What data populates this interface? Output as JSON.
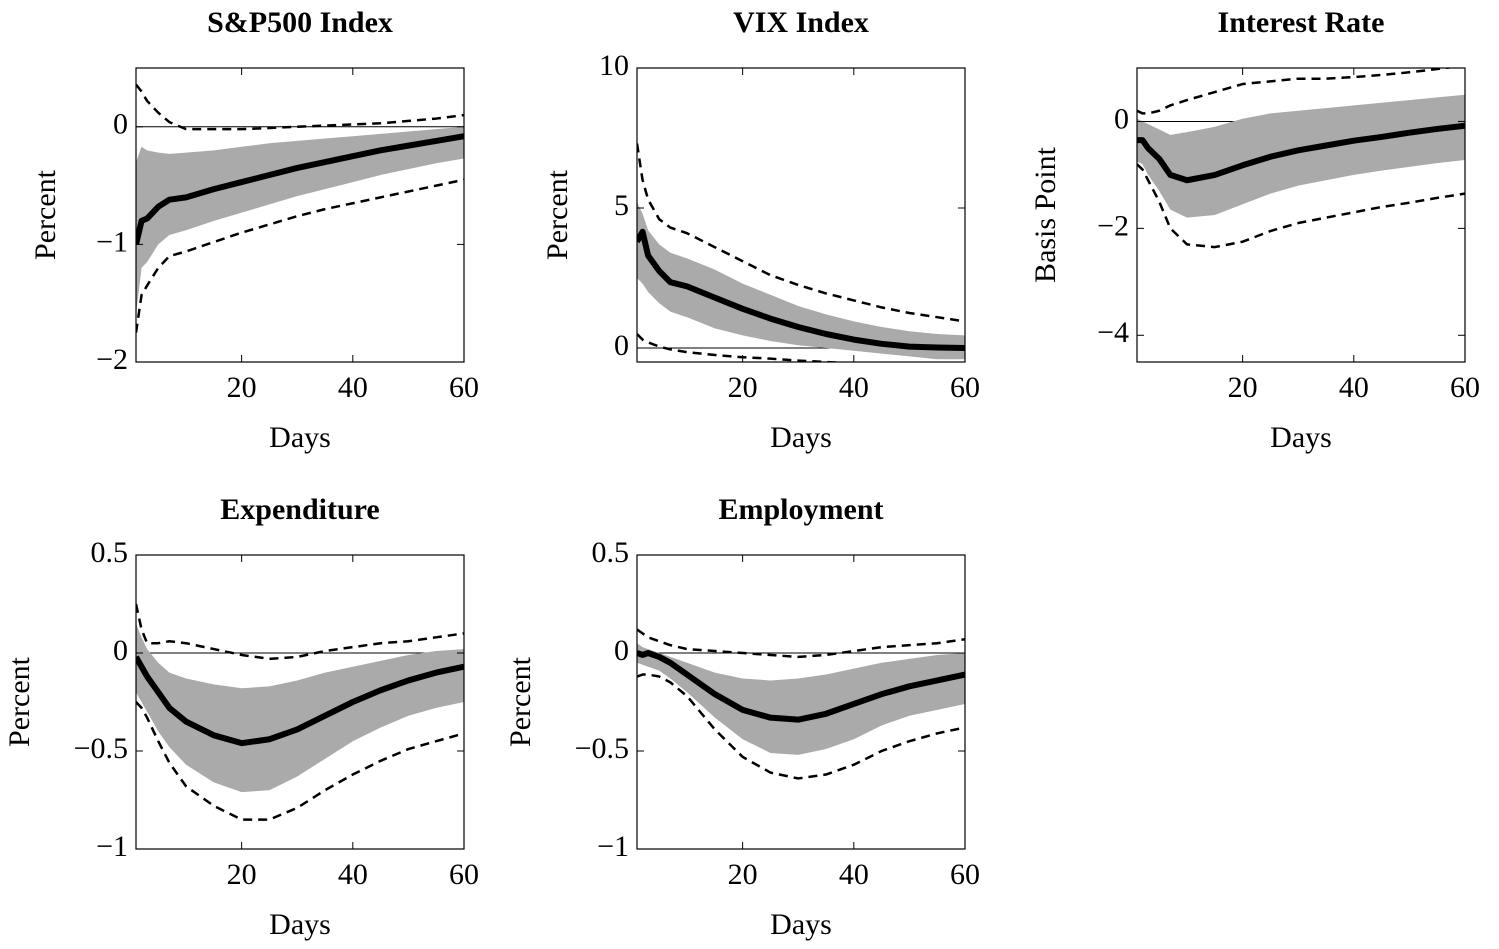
{
  "chart_data": [
    {
      "type": "line",
      "title": "S&P500 Index",
      "xlabel": "Days",
      "ylabel": "Percent",
      "x": [
        1,
        2,
        3,
        5,
        7,
        10,
        15,
        20,
        25,
        30,
        35,
        40,
        45,
        50,
        55,
        60
      ],
      "xlim": [
        1,
        60
      ],
      "xticks": [
        20,
        40,
        60
      ],
      "ylim": [
        -2,
        0.5
      ],
      "yticks": [
        {
          "value": -2,
          "label": "−2"
        },
        {
          "value": -1,
          "label": "−1"
        },
        0
      ],
      "hline": 0,
      "series": [
        {
          "color": "#aaaaaa",
          "fill": true,
          "values": [
            -0.3,
            -0.17,
            -0.2,
            -0.22,
            -0.23,
            -0.22,
            -0.2,
            -0.17,
            -0.14,
            -0.12,
            -0.1,
            -0.08,
            -0.06,
            -0.04,
            -0.02,
            0
          ],
          "lower": [
            -1.6,
            -1.2,
            -1.15,
            -1.0,
            -0.92,
            -0.88,
            -0.8,
            -0.73,
            -0.66,
            -0.59,
            -0.53,
            -0.47,
            -0.41,
            -0.36,
            -0.31,
            -0.27
          ]
        },
        {
          "color": "#000000",
          "dash": true,
          "values": [
            0.36,
            0.3,
            0.22,
            0.12,
            0.04,
            -0.02,
            -0.02,
            -0.02,
            -0.01,
            0,
            0.01,
            0.02,
            0.03,
            0.05,
            0.07,
            0.1
          ]
        },
        {
          "color": "#000000",
          "dash": true,
          "values": [
            -1.75,
            -1.43,
            -1.35,
            -1.2,
            -1.1,
            -1.06,
            -0.98,
            -0.9,
            -0.83,
            -0.76,
            -0.7,
            -0.65,
            -0.6,
            -0.55,
            -0.5,
            -0.45
          ]
        },
        {
          "color": "#000000",
          "width": 6,
          "values": [
            -1.0,
            -0.8,
            -0.78,
            -0.68,
            -0.62,
            -0.6,
            -0.53,
            -0.47,
            -0.41,
            -0.35,
            -0.3,
            -0.25,
            -0.2,
            -0.16,
            -0.12,
            -0.08
          ]
        }
      ]
    },
    {
      "type": "line",
      "title": "VIX Index",
      "xlabel": "Days",
      "ylabel": "Percent",
      "x": [
        1,
        2,
        3,
        5,
        7,
        10,
        15,
        20,
        25,
        30,
        35,
        40,
        45,
        50,
        55,
        60
      ],
      "xlim": [
        1,
        60
      ],
      "xticks": [
        20,
        40,
        60
      ],
      "ylim": [
        -0.5,
        10
      ],
      "yticks": [
        0,
        5,
        10
      ],
      "hline": 0,
      "series": [
        {
          "color": "#aaaaaa",
          "fill": true,
          "values": [
            5.2,
            4.8,
            4.2,
            3.7,
            3.4,
            3.2,
            2.8,
            2.3,
            1.9,
            1.5,
            1.2,
            0.95,
            0.75,
            0.6,
            0.5,
            0.45
          ],
          "lower": [
            2.5,
            2.3,
            2.0,
            1.6,
            1.3,
            1.1,
            0.7,
            0.45,
            0.25,
            0.1,
            0,
            -0.1,
            -0.2,
            -0.3,
            -0.4,
            -0.4
          ]
        },
        {
          "color": "#000000",
          "dash": true,
          "values": [
            7.3,
            6.0,
            5.3,
            4.6,
            4.3,
            4.1,
            3.6,
            3.1,
            2.6,
            2.25,
            1.95,
            1.7,
            1.45,
            1.25,
            1.1,
            0.95
          ]
        },
        {
          "color": "#000000",
          "dash": true,
          "values": [
            0.5,
            0.3,
            0.2,
            0.05,
            -0.05,
            -0.15,
            -0.25,
            -0.33,
            -0.38,
            -0.45,
            -0.5,
            -0.55,
            -0.6,
            -0.6,
            -0.6,
            -0.6
          ]
        },
        {
          "color": "#000000",
          "width": 6,
          "values": [
            3.8,
            4.15,
            3.3,
            2.75,
            2.35,
            2.2,
            1.8,
            1.4,
            1.05,
            0.75,
            0.5,
            0.3,
            0.15,
            0.05,
            0.02,
            0
          ]
        }
      ]
    },
    {
      "type": "line",
      "title": "Interest Rate",
      "xlabel": "Days",
      "ylabel": "Basis Point",
      "x": [
        1,
        2,
        3,
        5,
        7,
        10,
        15,
        20,
        25,
        30,
        35,
        40,
        45,
        50,
        55,
        60
      ],
      "xlim": [
        1,
        60
      ],
      "xticks": [
        20,
        40,
        60
      ],
      "ylim": [
        -4.5,
        1
      ],
      "yticks": [
        {
          "value": -4,
          "label": "−4"
        },
        {
          "value": -2,
          "label": "−2"
        },
        0
      ],
      "hline": 0,
      "series": [
        {
          "color": "#aaaaaa",
          "fill": true,
          "values": [
            0.05,
            0.0,
            -0.05,
            -0.15,
            -0.25,
            -0.2,
            -0.1,
            0.05,
            0.15,
            0.2,
            0.25,
            0.3,
            0.35,
            0.4,
            0.45,
            0.5
          ],
          "lower": [
            -0.75,
            -0.8,
            -1.0,
            -1.3,
            -1.65,
            -1.8,
            -1.75,
            -1.55,
            -1.35,
            -1.2,
            -1.1,
            -1.0,
            -0.92,
            -0.85,
            -0.78,
            -0.72
          ]
        },
        {
          "color": "#000000",
          "dash": true,
          "values": [
            0.2,
            0.15,
            0.15,
            0.2,
            0.3,
            0.4,
            0.55,
            0.7,
            0.75,
            0.8,
            0.8,
            0.83,
            0.87,
            0.92,
            0.98,
            1.05
          ]
        },
        {
          "color": "#000000",
          "dash": true,
          "values": [
            -0.8,
            -0.9,
            -1.1,
            -1.5,
            -2.0,
            -2.3,
            -2.35,
            -2.25,
            -2.05,
            -1.9,
            -1.8,
            -1.7,
            -1.6,
            -1.52,
            -1.43,
            -1.35
          ]
        },
        {
          "color": "#000000",
          "width": 6,
          "values": [
            -0.35,
            -0.35,
            -0.5,
            -0.7,
            -1.0,
            -1.1,
            -1.0,
            -0.82,
            -0.66,
            -0.54,
            -0.45,
            -0.36,
            -0.29,
            -0.21,
            -0.14,
            -0.08
          ]
        }
      ]
    },
    {
      "type": "line",
      "title": "Expenditure",
      "xlabel": "Days",
      "ylabel": "Percent",
      "x": [
        1,
        2,
        3,
        5,
        7,
        10,
        15,
        20,
        25,
        30,
        35,
        40,
        45,
        50,
        55,
        60
      ],
      "xlim": [
        1,
        60
      ],
      "xticks": [
        20,
        40,
        60
      ],
      "ylim": [
        -1,
        0.5
      ],
      "yticks": [
        {
          "value": -1,
          "label": "−1"
        },
        {
          "value": -0.5,
          "label": "−0.5"
        },
        0,
        0.5
      ],
      "hline": 0,
      "series": [
        {
          "color": "#aaaaaa",
          "fill": true,
          "values": [
            0.15,
            0.08,
            0.02,
            -0.05,
            -0.1,
            -0.13,
            -0.16,
            -0.18,
            -0.17,
            -0.14,
            -0.1,
            -0.07,
            -0.04,
            -0.01,
            0.01,
            0.02
          ],
          "lower": [
            -0.2,
            -0.25,
            -0.3,
            -0.4,
            -0.48,
            -0.57,
            -0.66,
            -0.71,
            -0.7,
            -0.63,
            -0.54,
            -0.45,
            -0.38,
            -0.32,
            -0.28,
            -0.25
          ]
        },
        {
          "color": "#000000",
          "dash": true,
          "values": [
            0.25,
            0.12,
            0.05,
            0.05,
            0.06,
            0.05,
            0.02,
            -0.01,
            -0.03,
            -0.02,
            0.01,
            0.03,
            0.05,
            0.06,
            0.08,
            0.1
          ]
        },
        {
          "color": "#000000",
          "dash": true,
          "values": [
            -0.25,
            -0.28,
            -0.33,
            -0.45,
            -0.56,
            -0.68,
            -0.78,
            -0.85,
            -0.85,
            -0.79,
            -0.7,
            -0.62,
            -0.55,
            -0.49,
            -0.45,
            -0.41
          ]
        },
        {
          "color": "#000000",
          "width": 6,
          "values": [
            -0.02,
            -0.07,
            -0.12,
            -0.2,
            -0.28,
            -0.35,
            -0.42,
            -0.46,
            -0.44,
            -0.39,
            -0.32,
            -0.25,
            -0.19,
            -0.14,
            -0.1,
            -0.07
          ]
        }
      ]
    },
    {
      "type": "line",
      "title": "Employment",
      "xlabel": "Days",
      "ylabel": "Percent",
      "x": [
        1,
        2,
        3,
        5,
        7,
        10,
        15,
        20,
        25,
        30,
        35,
        40,
        45,
        50,
        55,
        60
      ],
      "xlim": [
        1,
        60
      ],
      "xticks": [
        20,
        40,
        60
      ],
      "ylim": [
        -1,
        0.5
      ],
      "yticks": [
        {
          "value": -1,
          "label": "−1"
        },
        {
          "value": -0.5,
          "label": "−0.5"
        },
        0,
        0.5
      ],
      "hline": 0,
      "series": [
        {
          "color": "#aaaaaa",
          "fill": true,
          "values": [
            0.05,
            0.03,
            0.02,
            0,
            -0.02,
            -0.05,
            -0.1,
            -0.13,
            -0.14,
            -0.13,
            -0.11,
            -0.08,
            -0.05,
            -0.03,
            -0.01,
            0
          ],
          "lower": [
            -0.05,
            -0.06,
            -0.07,
            -0.09,
            -0.13,
            -0.2,
            -0.33,
            -0.44,
            -0.51,
            -0.52,
            -0.49,
            -0.44,
            -0.37,
            -0.32,
            -0.29,
            -0.26
          ]
        },
        {
          "color": "#000000",
          "dash": true,
          "values": [
            0.12,
            0.1,
            0.08,
            0.06,
            0.04,
            0.02,
            0.01,
            0,
            -0.01,
            -0.02,
            -0.01,
            0.01,
            0.03,
            0.04,
            0.05,
            0.07
          ]
        },
        {
          "color": "#000000",
          "dash": true,
          "values": [
            -0.12,
            -0.11,
            -0.11,
            -0.12,
            -0.15,
            -0.22,
            -0.39,
            -0.53,
            -0.61,
            -0.64,
            -0.62,
            -0.57,
            -0.5,
            -0.45,
            -0.41,
            -0.38
          ]
        },
        {
          "color": "#000000",
          "width": 6,
          "values": [
            0,
            -0.01,
            0,
            -0.02,
            -0.05,
            -0.11,
            -0.21,
            -0.29,
            -0.33,
            -0.34,
            -0.31,
            -0.26,
            -0.21,
            -0.17,
            -0.14,
            -0.11
          ]
        }
      ]
    }
  ]
}
